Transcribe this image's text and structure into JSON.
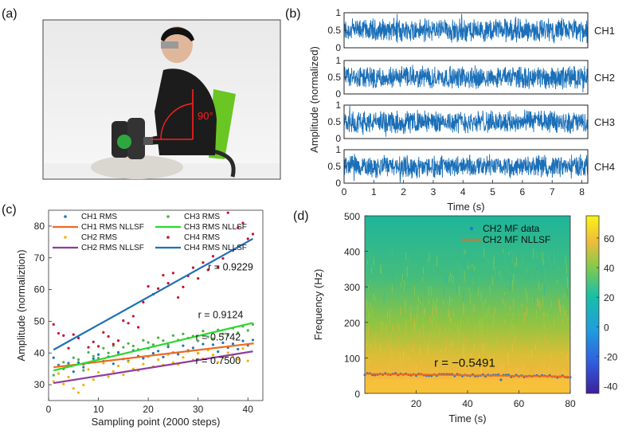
{
  "panel_labels": [
    "(a)",
    "(b)",
    "(c)",
    "(d)"
  ],
  "photo": {
    "angle_label": "90°"
  },
  "chart_data": [
    {
      "id": "b",
      "type": "line",
      "title": "",
      "xlabel": "Time (s)",
      "ylabel": "Amplitude (normalized)",
      "xlim": [
        0,
        8.2
      ],
      "xticks": [
        0,
        1,
        2,
        3,
        4,
        5,
        6,
        7,
        8
      ],
      "yticks": [
        0,
        0.5,
        1
      ],
      "ylim": [
        0,
        1
      ],
      "channels": [
        "CH1",
        "CH2",
        "CH3",
        "CH4"
      ],
      "baseline": 0.5,
      "color": "#1a6fb8"
    },
    {
      "id": "c",
      "type": "scatter",
      "xlabel": "Sampling point (2000 steps)",
      "ylabel": "Amplitude (normaliztion)",
      "xlim": [
        0,
        43
      ],
      "ylim": [
        25,
        85
      ],
      "xticks": [
        0,
        10,
        20,
        30,
        40
      ],
      "yticks": [
        30,
        40,
        50,
        60,
        70,
        80
      ],
      "legend": [
        {
          "label": "CH1 RMS",
          "color": "#1f77b4",
          "kind": "dot"
        },
        {
          "label": "CH3 RMS",
          "color": "#4daf4a",
          "kind": "dot"
        },
        {
          "label": "CH1 RMS NLLSF",
          "color": "#ee6a1f",
          "kind": "line"
        },
        {
          "label": "CH3 RMS NLLSF",
          "color": "#2bd92b",
          "kind": "line"
        },
        {
          "label": "CH2 RMS",
          "color": "#f0b400",
          "kind": "dot"
        },
        {
          "label": "CH4 RMS",
          "color": "#c8102e",
          "kind": "dot"
        },
        {
          "label": "CH2 RMS NLLSF",
          "color": "#8e3c9e",
          "kind": "line"
        },
        {
          "label": "CH4 RMS NLLSF",
          "color": "#1f6fb8",
          "kind": "line"
        }
      ],
      "series": [
        {
          "name": "CH1 RMS",
          "color": "#1f77b4",
          "values": [
            38.5,
            36.2,
            35.0,
            36.8,
            34.1,
            37.0,
            35.5,
            36.9,
            38.2,
            39.5,
            37.4,
            38.8,
            36.6,
            40.2,
            38.1,
            37.5,
            40.8,
            39.0,
            38.3,
            41.5,
            39.9,
            40.6,
            38.7,
            41.9,
            40.1,
            39.6,
            42.3,
            40.8,
            41.6,
            39.9,
            42.8,
            41.0,
            42.6,
            40.4,
            43.2,
            41.7,
            42.9,
            41.2,
            43.8,
            42.4,
            44.1
          ]
        },
        {
          "name": "CH2 RMS",
          "color": "#f0b400",
          "values": [
            31.0,
            33.5,
            30.2,
            32.4,
            28.8,
            27.5,
            29.9,
            34.8,
            31.6,
            33.9,
            36.8,
            32.5,
            34.2,
            35.9,
            33.1,
            37.2,
            35.0,
            34.4,
            36.5,
            38.8,
            35.7,
            37.9,
            36.2,
            39.5,
            37.0,
            36.4,
            38.6,
            40.5,
            37.8,
            39.9,
            38.2,
            40.9,
            39.4,
            37.1,
            38.5,
            40.1,
            39.2,
            38.0,
            41.4,
            37.5,
            43.0
          ]
        },
        {
          "name": "CH3 RMS",
          "color": "#4daf4a",
          "values": [
            33.0,
            35.8,
            37.1,
            36.3,
            38.5,
            37.9,
            34.5,
            40.2,
            39.0,
            38.4,
            41.5,
            40.0,
            42.3,
            39.6,
            41.8,
            43.0,
            42.2,
            41.1,
            44.0,
            43.3,
            42.6,
            44.8,
            43.9,
            42.5,
            45.5,
            44.1,
            46.0,
            44.7,
            45.3,
            43.8,
            46.9,
            45.1,
            44.5,
            47.3,
            46.0,
            45.6,
            47.8,
            46.4,
            48.4,
            47.1,
            49.0
          ]
        },
        {
          "name": "CH4 RMS",
          "color": "#c8102e",
          "values": [
            49.0,
            46.2,
            45.5,
            41.5,
            45.8,
            44.7,
            36.5,
            41.8,
            43.5,
            42.1,
            46.5,
            45.2,
            42.8,
            43.9,
            50.2,
            49.4,
            51.6,
            48.1,
            56.0,
            61.0,
            58.5,
            60.3,
            64.5,
            62.0,
            65.2,
            57.5,
            60.8,
            64.3,
            66.9,
            63.5,
            68.5,
            66.2,
            70.5,
            67.0,
            69.8,
            84.2,
            72.3,
            79.5,
            81.0,
            76.0,
            77.5
          ]
        }
      ],
      "fits": [
        {
          "name": "CH1 RMS NLLSF",
          "color": "#ee6a1f",
          "from": [
            1,
            35.5
          ],
          "to": [
            41,
            43.0
          ]
        },
        {
          "name": "CH2 RMS NLLSF",
          "color": "#8e3c9e",
          "from": [
            1,
            30.5
          ],
          "to": [
            41,
            40.5
          ]
        },
        {
          "name": "CH3 RMS NLLSF",
          "color": "#2bd92b",
          "from": [
            1,
            34.5
          ],
          "to": [
            41,
            49.5
          ]
        },
        {
          "name": "CH4 RMS NLLSF",
          "color": "#1f6fb8",
          "from": [
            1,
            41.0
          ],
          "to": [
            41,
            76.0
          ]
        }
      ],
      "annotations": [
        {
          "text": "r = 0.9229",
          "x": 32,
          "y": 66
        },
        {
          "text": "r = 0.9124",
          "x": 30,
          "y": 51
        },
        {
          "text": "r = 0.5742",
          "x": 29.5,
          "y": 44
        },
        {
          "text": "r = 0.7500",
          "x": 29.5,
          "y": 36.5
        }
      ]
    },
    {
      "id": "d",
      "type": "heatmap",
      "xlabel": "Time (s)",
      "ylabel": "Frequency (Hz)",
      "xlim": [
        0,
        80
      ],
      "ylim": [
        0,
        500
      ],
      "xticks": [
        20,
        40,
        60,
        80
      ],
      "yticks": [
        0,
        100,
        200,
        300,
        400,
        500
      ],
      "colorbar": {
        "min": -45,
        "max": 75,
        "ticks": [
          -40,
          -20,
          0,
          20,
          40,
          60
        ]
      },
      "legend": [
        {
          "label": "CH2 MF data",
          "color": "#2176c7",
          "kind": "dot"
        },
        {
          "label": "CH2 MF NLLSF",
          "color": "#ee6a1f",
          "kind": "line"
        }
      ],
      "mf_fit": {
        "from": [
          0,
          55
        ],
        "to": [
          80,
          47
        ]
      },
      "annotation": {
        "text": "r = −0.5491",
        "x": 27,
        "y": 75
      }
    }
  ]
}
